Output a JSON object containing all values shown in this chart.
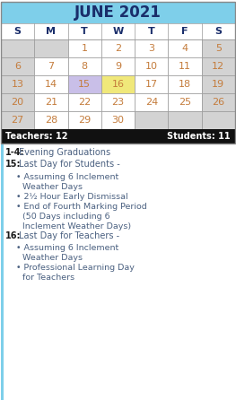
{
  "title": "JUNE 2021",
  "title_bg": "#7ecfea",
  "title_color": "#1a2e6b",
  "header_days": [
    "S",
    "M",
    "T",
    "W",
    "T",
    "F",
    "S"
  ],
  "header_color": "#1a2e6b",
  "calendar_rows": [
    [
      "",
      "",
      "1",
      "2",
      "3",
      "4",
      "5"
    ],
    [
      "6",
      "7",
      "8",
      "9",
      "10",
      "11",
      "12"
    ],
    [
      "13",
      "14",
      "15",
      "16",
      "17",
      "18",
      "19"
    ],
    [
      "20",
      "21",
      "22",
      "23",
      "24",
      "25",
      "26"
    ],
    [
      "27",
      "28",
      "29",
      "30",
      "",
      "",
      ""
    ]
  ],
  "cell_colors": {
    "2_2": "#c9bfe8",
    "2_3": "#f0e87a"
  },
  "weekend_col_color": "#d3d3d3",
  "normal_cell_color": "#ffffff",
  "empty_cell_color": "#d3d3d3",
  "number_color": "#c47c3c",
  "grid_color": "#999999",
  "teachers_bar_bg": "#111111",
  "teachers_bar_color": "#ffffff",
  "teachers_text": "Teachers: 12",
  "students_text": "Students: 11",
  "notes_left_bar": "#7ecfea",
  "notes_text_color": "#4a6080",
  "notes_bold_color": "#1a1a1a",
  "note_lines": [
    {
      "type": "header",
      "bold": "1-4:",
      "rest": "  Evening Graduations"
    },
    {
      "type": "header",
      "bold": "15:",
      "rest": "  Last Day for Students -"
    },
    {
      "type": "bullet",
      "text": "Assuming 6 Inclement"
    },
    {
      "type": "continuation",
      "text": "Weather Days"
    },
    {
      "type": "bullet",
      "text": "2½ Hour Early Dismissal"
    },
    {
      "type": "bullet",
      "text": "End of Fourth Marking Period"
    },
    {
      "type": "continuation",
      "text": "(50 Days including 6"
    },
    {
      "type": "continuation",
      "text": "Inclement Weather Days)"
    },
    {
      "type": "header",
      "bold": "16:",
      "rest": "  Last Day for Teachers -"
    },
    {
      "type": "bullet",
      "text": "Assuming 6 Inclement"
    },
    {
      "type": "continuation",
      "text": "Weather Days"
    },
    {
      "type": "bullet",
      "text": "Professional Learning Day"
    },
    {
      "type": "continuation",
      "text": "for Teachers"
    }
  ]
}
